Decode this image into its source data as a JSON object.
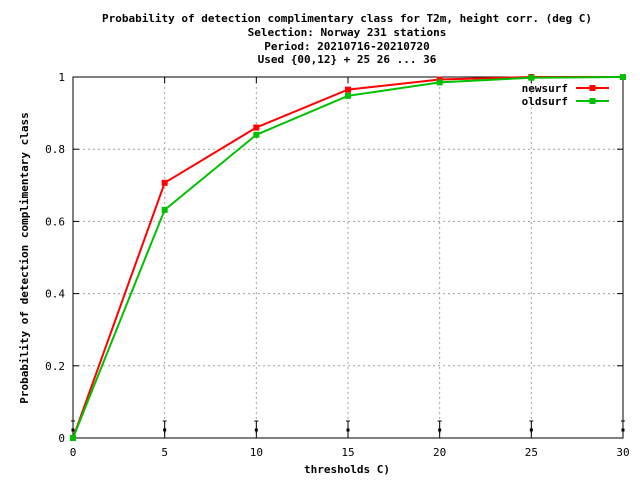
{
  "chart_data": {
    "type": "line",
    "title": [
      "Probability of detection complimentary class  for T2m, height corr. (deg C)",
      "Selection: Norway    231 stations",
      "Period: 20210716-20210720",
      "Used {00,12} + 25 26 ... 36"
    ],
    "xlabel": "thresholds C)",
    "ylabel": "Probability of detection complimentary class",
    "xlim": [
      0,
      30
    ],
    "ylim": [
      0,
      1
    ],
    "xticks": [
      0,
      5,
      10,
      15,
      20,
      25,
      30
    ],
    "yticks": [
      0,
      0.2,
      0.4,
      0.6,
      0.8,
      1
    ],
    "ytick_labels": [
      "0",
      "0.2",
      "0.4",
      "0.6",
      "0.8",
      "1"
    ],
    "grid": true,
    "legend_position": "top-right",
    "series": [
      {
        "name": "newsurf",
        "color": "#ff0000",
        "x": [
          0,
          5,
          10,
          15,
          20,
          25,
          30
        ],
        "y": [
          0.0,
          0.707,
          0.86,
          0.965,
          0.993,
          1.0,
          1.0
        ]
      },
      {
        "name": "oldsurf",
        "color": "#00c000",
        "x": [
          0,
          5,
          10,
          15,
          20,
          25,
          30
        ],
        "y": [
          0.0,
          0.632,
          0.84,
          0.948,
          0.985,
          0.998,
          1.0
        ]
      }
    ],
    "markers_at_zero": [
      0,
      5,
      10,
      15,
      20,
      25,
      30
    ]
  }
}
